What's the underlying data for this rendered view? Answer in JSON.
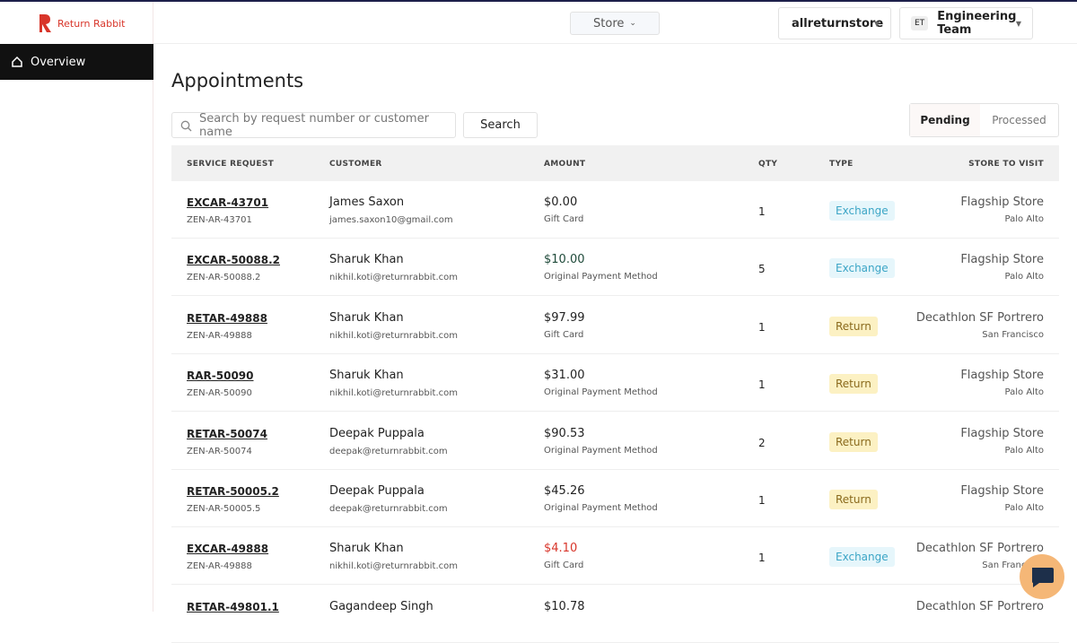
{
  "brand": "Return Rabbit",
  "nav": {
    "store_selector": "Store",
    "org": "allreturnstore",
    "team_initials": "ET",
    "team": "Engineering Team"
  },
  "sidebar": {
    "items": [
      "Overview"
    ]
  },
  "page": {
    "title": "Appointments",
    "search_placeholder": "Search by request number or customer name",
    "search_button": "Search",
    "tabs": [
      "Pending",
      "Processed"
    ]
  },
  "table": {
    "columns": [
      "SERVICE REQUEST",
      "CUSTOMER",
      "AMOUNT",
      "QTY",
      "TYPE",
      "STORE TO VISIT"
    ],
    "rows": [
      {
        "request": "EXCAR-43701",
        "ref": "ZEN-AR-43701",
        "customer": "James Saxon",
        "email": "james.saxon10@gmail.com",
        "amount": "$0.00",
        "amount_color": "#222222",
        "payment": "Gift Card",
        "qty": 1,
        "type": "Exchange",
        "type_bg": "#e6f6fb",
        "type_fg": "#3ba5c6",
        "store": "Flagship Store",
        "city": "Palo Alto"
      },
      {
        "request": "EXCAR-50088.2",
        "ref": "ZEN-AR-50088.2",
        "customer": "Sharuk Khan",
        "email": "nikhil.koti@returnrabbit.com",
        "amount": "$10.00",
        "amount_color": "#1f4a3a",
        "payment": "Original Payment Method",
        "qty": 5,
        "type": "Exchange",
        "type_bg": "#e6f6fb",
        "type_fg": "#3ba5c6",
        "store": "Flagship Store",
        "city": "Palo Alto"
      },
      {
        "request": "RETAR-49888",
        "ref": "ZEN-AR-49888",
        "customer": "Sharuk Khan",
        "email": "nikhil.koti@returnrabbit.com",
        "amount": "$97.99",
        "amount_color": "#222222",
        "payment": "Gift Card",
        "qty": 1,
        "type": "Return",
        "type_bg": "#fcf1c3",
        "type_fg": "#8a6a1c",
        "store": "Decathlon SF Portrero",
        "city": "San Francisco"
      },
      {
        "request": "RAR-50090",
        "ref": "ZEN-AR-50090",
        "customer": "Sharuk Khan",
        "email": "nikhil.koti@returnrabbit.com",
        "amount": "$31.00",
        "amount_color": "#222222",
        "payment": "Original Payment Method",
        "qty": 1,
        "type": "Return",
        "type_bg": "#fcf1c3",
        "type_fg": "#8a6a1c",
        "store": "Flagship Store",
        "city": "Palo Alto"
      },
      {
        "request": "RETAR-50074",
        "ref": "ZEN-AR-50074",
        "customer": "Deepak Puppala",
        "email": "deepak@returnrabbit.com",
        "amount": "$90.53",
        "amount_color": "#222222",
        "payment": "Original Payment Method",
        "qty": 2,
        "type": "Return",
        "type_bg": "#fcf1c3",
        "type_fg": "#8a6a1c",
        "store": "Flagship Store",
        "city": "Palo Alto"
      },
      {
        "request": "RETAR-50005.2",
        "ref": "ZEN-AR-50005.5",
        "customer": "Deepak Puppala",
        "email": "deepak@returnrabbit.com",
        "amount": "$45.26",
        "amount_color": "#222222",
        "payment": "Original Payment Method",
        "qty": 1,
        "type": "Return",
        "type_bg": "#fcf1c3",
        "type_fg": "#8a6a1c",
        "store": "Flagship Store",
        "city": "Palo Alto"
      },
      {
        "request": "EXCAR-49888",
        "ref": "ZEN-AR-49888",
        "customer": "Sharuk Khan",
        "email": "nikhil.koti@returnrabbit.com",
        "amount": "$4.10",
        "amount_color": "#d8352a",
        "payment": "Gift Card",
        "qty": 1,
        "type": "Exchange",
        "type_bg": "#e6f6fb",
        "type_fg": "#3ba5c6",
        "store": "Decathlon SF Portrero",
        "city": "San Francisco"
      },
      {
        "request": "RETAR-49801.1",
        "customer": "Gagandeep Singh",
        "amount": "$10.78",
        "amount_color": "#222222",
        "store": "Decathlon SF Portrero"
      }
    ]
  }
}
